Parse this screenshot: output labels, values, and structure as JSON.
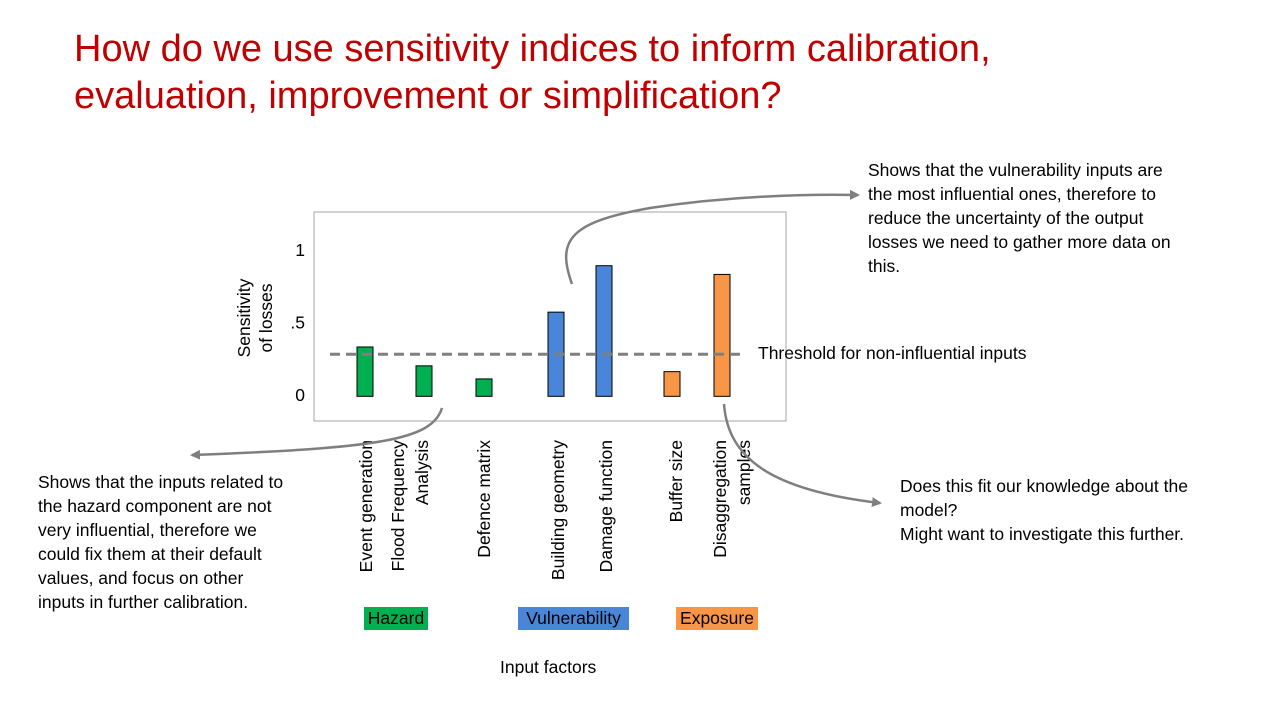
{
  "title": {
    "line1": "How do we use sensitivity indices to inform calibration,",
    "line2": "evaluation, improvement or simplification?"
  },
  "chart_data": {
    "type": "bar",
    "categories": [
      [
        "Event generation"
      ],
      [
        "Flood Frequency",
        "Analysis"
      ],
      [
        "Defence matrix"
      ],
      [
        "Building geometry"
      ],
      [
        "Damage function"
      ],
      [
        "Buffer size"
      ],
      [
        "Disaggregation",
        "samples"
      ]
    ],
    "values": [
      0.34,
      0.21,
      0.12,
      0.58,
      0.9,
      0.17,
      0.84
    ],
    "bar_colors": [
      "#00b050",
      "#00b050",
      "#00b050",
      "#4a86d8",
      "#4a86d8",
      "#f79646",
      "#f79646"
    ],
    "ylabel": [
      "Sensitivity",
      "of losses"
    ],
    "yticks": [
      {
        "value": 0,
        "label": "0"
      },
      {
        "value": 0.5,
        "label": ".5"
      },
      {
        "value": 1,
        "label": "1"
      }
    ],
    "ylim": [
      -0.17,
      1.27
    ],
    "xlabel": "Input factors",
    "threshold": {
      "value": 0.29,
      "label": "Threshold  for non-influential  inputs",
      "color": "#7f7f7f"
    },
    "groups": [
      {
        "label": "Hazard",
        "color": "#00b050"
      },
      {
        "label": "Vulnerability",
        "color": "#4a86d8"
      },
      {
        "label": "Exposure",
        "color": "#f79646"
      }
    ],
    "grid": false,
    "legend": "none"
  },
  "annotations": {
    "top_right": [
      "Shows  that the vulnerability  inputs  are",
      "the most influential  ones, therefore to",
      "reduce the uncertainty  of the output",
      "losses we need  to gather more data on",
      "this."
    ],
    "left": [
      "Shows  that the inputs  related to",
      "the hazard component  are not",
      "very influential,  therefore we",
      "could fix them at their default",
      "values, and focus on other",
      "inputs  in further calibration."
    ],
    "right": [
      "Does this fit our knowledge about the",
      "model?",
      "Might want to investigate  this further."
    ]
  },
  "colors": {
    "title": "#c00000",
    "arrow": "#7f7f7f",
    "hazard": "#00b050",
    "vulnerability": "#4a86d8",
    "exposure": "#f79646"
  }
}
